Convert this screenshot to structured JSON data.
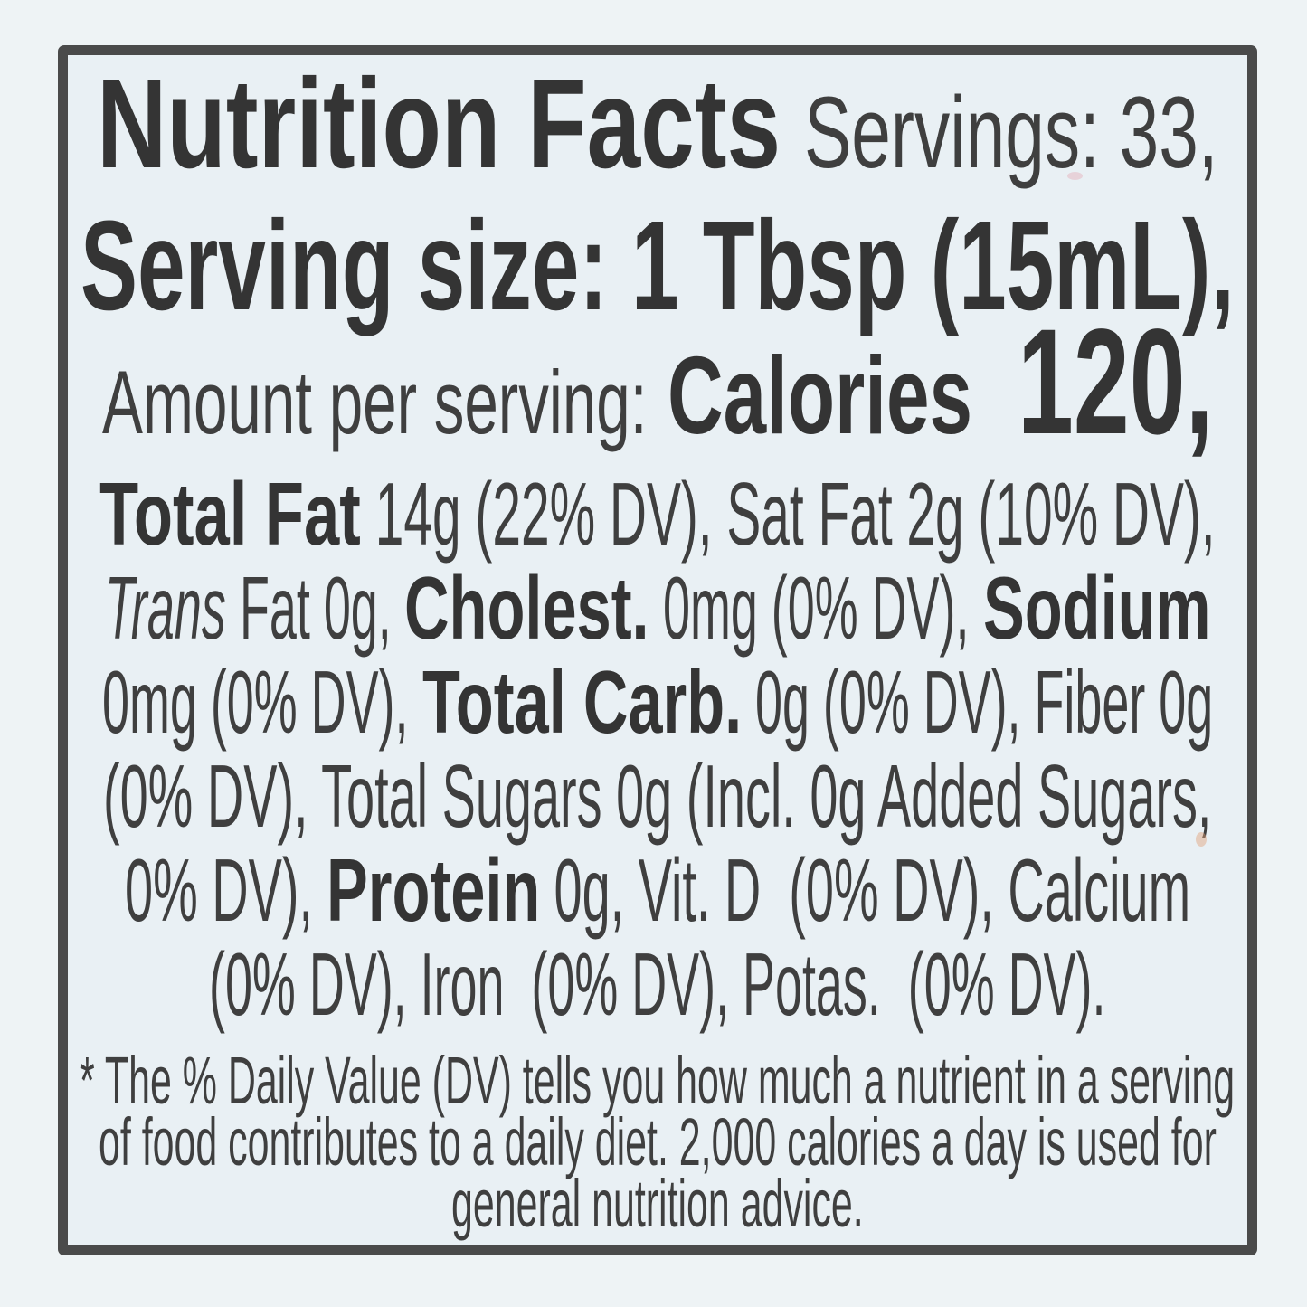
{
  "colors": {
    "page-bg": "#eef3f5",
    "label-bg": "#e9f0f4",
    "border": "#4a4a4a",
    "text": "#3f3f3f",
    "text-bold": "#343434",
    "speck": "#dfa077"
  },
  "header": {
    "title": "Nutrition Facts",
    "servings": "Servings: 33,"
  },
  "serving_size": "Serving size: 1 Tbsp (15mL),",
  "calories": {
    "amount_per_serving": "Amount per serving:",
    "label": "Calories",
    "value": "120,"
  },
  "nutrients": {
    "line1": {
      "total_fat": "Total Fat",
      "rest": " 14g (22% DV), Sat Fat 2g (10% DV),"
    },
    "line2": {
      "trans": "Trans",
      "trans_rest": " Fat 0g, ",
      "cholesterol": "Cholest.",
      "chol_rest": " 0mg (0% DV), ",
      "sodium": "Sodium"
    },
    "line3": {
      "sodium_rest": "0mg (0% DV), ",
      "total_carb": "Total Carb.",
      "rest": " 0g (0% DV), Fiber 0g"
    },
    "line4": {
      "text": "(0% DV), Total Sugars 0g (Incl. 0g Added Sugars,"
    },
    "line5": {
      "pre": "0% DV), ",
      "protein": "Protein",
      "rest": " 0g, Vit. D  (0% DV), Calcium"
    },
    "line6": {
      "text": "(0% DV), Iron  (0% DV), Potas.  (0% DV)."
    }
  },
  "footnote": {
    "line1": "* The % Daily Value (DV) tells you how much a nutrient in a serving",
    "line2": "of food contributes to a daily diet. 2,000 calories a day is used for",
    "line3": "general nutrition advice."
  }
}
